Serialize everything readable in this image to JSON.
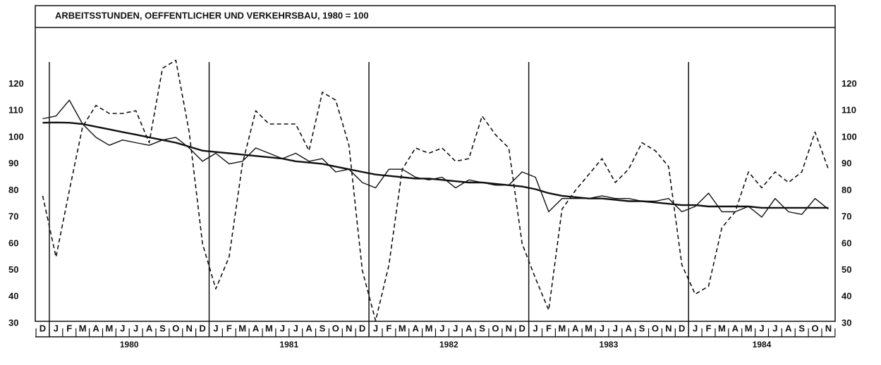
{
  "chart_data": {
    "type": "line",
    "title": "ARBEITSSTUNDEN, OEFFENTLICHER UND VERKEHRSBAU, 1980 = 100",
    "categories": [
      "D",
      "J",
      "F",
      "M",
      "A",
      "M",
      "J",
      "J",
      "A",
      "S",
      "O",
      "N",
      "D",
      "J",
      "F",
      "M",
      "A",
      "M",
      "J",
      "J",
      "A",
      "S",
      "O",
      "N",
      "D",
      "J",
      "F",
      "M",
      "A",
      "M",
      "J",
      "J",
      "A",
      "S",
      "O",
      "N",
      "D",
      "J",
      "F",
      "M",
      "A",
      "M",
      "J",
      "J",
      "A",
      "S",
      "O",
      "N",
      "D",
      "J",
      "F",
      "M",
      "A",
      "M",
      "J",
      "J",
      "A",
      "S",
      "O",
      "N"
    ],
    "years": [
      "1980",
      "1981",
      "1982",
      "1983",
      "1984"
    ],
    "series": [
      {
        "color": "#111111",
        "style": "dashed",
        "values": [
          78,
          55,
          80,
          104,
          112,
          109,
          109,
          110,
          98,
          126,
          129,
          102,
          60,
          43,
          55,
          90,
          110,
          105,
          105,
          105,
          95,
          117,
          114,
          97,
          50,
          31,
          52,
          88,
          96,
          94,
          96,
          91,
          92,
          108,
          101,
          96,
          60,
          47,
          35,
          73,
          80,
          86,
          92,
          83,
          88,
          98,
          95,
          89,
          52,
          41,
          44,
          66,
          72,
          87,
          81,
          87,
          83,
          87,
          102,
          88
        ]
      },
      {
        "color": "#111111",
        "style": "solid",
        "values": [
          107,
          108,
          114,
          105,
          100,
          97,
          99,
          98,
          97,
          99,
          100,
          96,
          91,
          94,
          90,
          91,
          96,
          94,
          92,
          94,
          91,
          92,
          87,
          88,
          83,
          81,
          88,
          88,
          85,
          84,
          85,
          81,
          84,
          83,
          82,
          82,
          87,
          85,
          72,
          77,
          77,
          77,
          78,
          77,
          77,
          76,
          76,
          77,
          72,
          74,
          79,
          72,
          72,
          74,
          70,
          77,
          72,
          71,
          77,
          73
        ]
      },
      {
        "color": "#111111",
        "style": "thick",
        "values": [
          105.5,
          105.6,
          105.5,
          105,
          104,
          103,
          102,
          101,
          100,
          99,
          98,
          96.5,
          95,
          94.5,
          94,
          93.5,
          93,
          92.5,
          92,
          91,
          90.5,
          90,
          89,
          88,
          87,
          86,
          85.5,
          85,
          84.5,
          84.5,
          84,
          83.5,
          83,
          83,
          82.5,
          82,
          81.5,
          80.5,
          79,
          78,
          77.5,
          77,
          77,
          76.5,
          76,
          76,
          75.5,
          75,
          74.5,
          74.5,
          74,
          74,
          74,
          74,
          73.5,
          73.5,
          73.5,
          73.5,
          73.5,
          73.5
        ]
      }
    ],
    "ylim": [
      30,
      140
    ],
    "yticks": [
      30,
      40,
      50,
      60,
      70,
      80,
      90,
      100,
      110,
      120
    ],
    "grid": false
  }
}
